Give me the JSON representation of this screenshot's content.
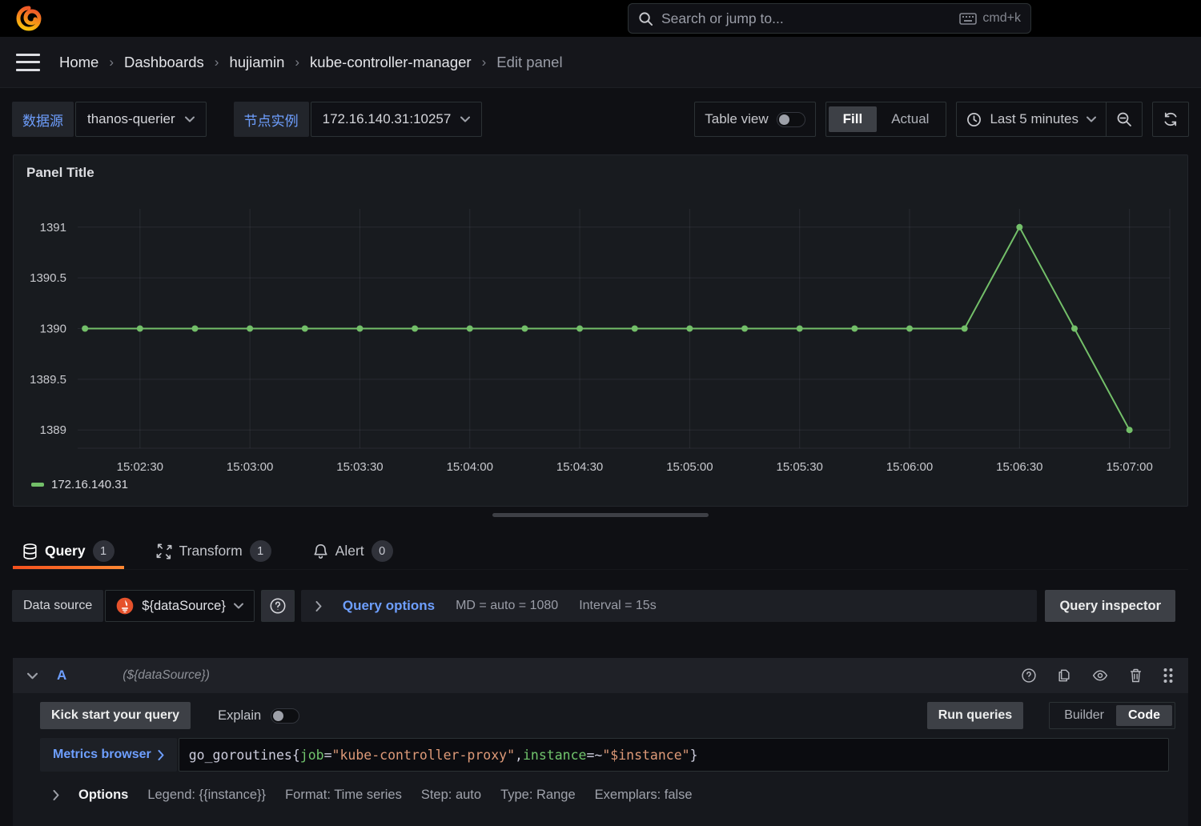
{
  "topbar": {
    "search_placeholder": "Search or jump to...",
    "shortcut": "cmd+k"
  },
  "breadcrumb": {
    "separator": "›",
    "items": [
      "Home",
      "Dashboards",
      "hujiamin",
      "kube-controller-manager"
    ],
    "current": "Edit panel"
  },
  "toolbar": {
    "var1_label": "数据源",
    "var1_value": "thanos-querier",
    "var2_label": "节点实例",
    "var2_value": "172.16.140.31:10257",
    "table_view_label": "Table view",
    "fill_label": "Fill",
    "actual_label": "Actual",
    "time_range": "Last 5 minutes"
  },
  "panel": {
    "title": "Panel Title",
    "legend": "172.16.140.31"
  },
  "chart_data": {
    "type": "line",
    "title": "Panel Title",
    "series": [
      {
        "name": "172.16.140.31",
        "color": "#73bf69",
        "points": [
          [
            "15:02:15",
            1390
          ],
          [
            "15:02:30",
            1390
          ],
          [
            "15:02:45",
            1390
          ],
          [
            "15:03:00",
            1390
          ],
          [
            "15:03:15",
            1390
          ],
          [
            "15:03:30",
            1390
          ],
          [
            "15:03:45",
            1390
          ],
          [
            "15:04:00",
            1390
          ],
          [
            "15:04:15",
            1390
          ],
          [
            "15:04:30",
            1390
          ],
          [
            "15:04:45",
            1390
          ],
          [
            "15:05:00",
            1390
          ],
          [
            "15:05:15",
            1390
          ],
          [
            "15:05:30",
            1390
          ],
          [
            "15:05:45",
            1390
          ],
          [
            "15:06:00",
            1390
          ],
          [
            "15:06:15",
            1390
          ],
          [
            "15:06:30",
            1391
          ],
          [
            "15:06:45",
            1390
          ],
          [
            "15:07:00",
            1389
          ]
        ]
      }
    ],
    "xticks": [
      "15:02:30",
      "15:03:00",
      "15:03:30",
      "15:04:00",
      "15:04:30",
      "15:05:00",
      "15:05:30",
      "15:06:00",
      "15:06:30",
      "15:07:00"
    ],
    "yticks": [
      1389,
      1389.5,
      1390,
      1390.5,
      1391
    ],
    "xlim": [
      "15:02:13",
      "15:07:11"
    ],
    "ylim": [
      1388.82,
      1391.18
    ],
    "grid": true,
    "legend_position": "bottom-left"
  },
  "tabs": {
    "query": {
      "label": "Query",
      "count": "1"
    },
    "transform": {
      "label": "Transform",
      "count": "1"
    },
    "alert": {
      "label": "Alert",
      "count": "0"
    }
  },
  "datasource_row": {
    "label": "Data source",
    "value": "${dataSource}",
    "options_label": "Query options",
    "md": "MD = auto = 1080",
    "interval": "Interval = 15s",
    "inspector": "Query inspector"
  },
  "query_row": {
    "ref_id": "A",
    "datasource_hint": "(${dataSource})",
    "kick_start": "Kick start your query",
    "explain": "Explain",
    "run_queries": "Run queries",
    "builder": "Builder",
    "code": "Code",
    "metrics_browser": "Metrics browser",
    "expr": [
      {
        "t": "go_goroutines{",
        "c": "plain"
      },
      {
        "t": "job",
        "c": "label"
      },
      {
        "t": "=",
        "c": "plain"
      },
      {
        "t": "\"kube-controller-proxy\"",
        "c": "string"
      },
      {
        "t": ",",
        "c": "plain"
      },
      {
        "t": "instance",
        "c": "label"
      },
      {
        "t": "=~",
        "c": "plain"
      },
      {
        "t": "\"$instance\"",
        "c": "string"
      },
      {
        "t": "}",
        "c": "plain"
      }
    ],
    "options": {
      "label": "Options",
      "items": [
        "Legend: {{instance}}",
        "Format: Time series",
        "Step: auto",
        "Type: Range",
        "Exemplars: false"
      ]
    }
  }
}
